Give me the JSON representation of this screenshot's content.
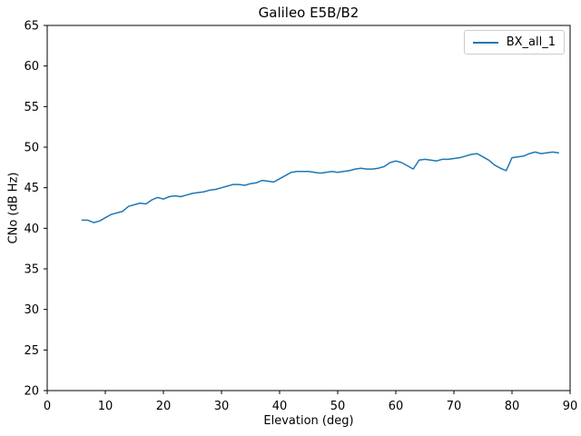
{
  "chart_data": {
    "type": "line",
    "title": "Galileo E5B/B2",
    "xlabel": "Elevation (deg)",
    "ylabel": "CNo (dB Hz)",
    "xlim": [
      0,
      90
    ],
    "ylim": [
      20,
      65
    ],
    "xticks": [
      0,
      10,
      20,
      30,
      40,
      50,
      60,
      70,
      80,
      90
    ],
    "yticks": [
      20,
      25,
      30,
      35,
      40,
      45,
      50,
      55,
      60,
      65
    ],
    "grid": false,
    "legend_position": "upper right",
    "frame_color": "#000000",
    "series": [
      {
        "name": "BX_all_1",
        "color": "#1f77b4",
        "x": [
          6,
          7,
          8,
          9,
          10,
          11,
          12,
          13,
          14,
          15,
          16,
          17,
          18,
          19,
          20,
          21,
          22,
          23,
          24,
          25,
          26,
          27,
          28,
          29,
          30,
          31,
          32,
          33,
          34,
          35,
          36,
          37,
          38,
          39,
          40,
          41,
          42,
          43,
          44,
          45,
          46,
          47,
          48,
          49,
          50,
          51,
          52,
          53,
          54,
          55,
          56,
          57,
          58,
          59,
          60,
          61,
          62,
          63,
          64,
          65,
          66,
          67,
          68,
          69,
          70,
          71,
          72,
          73,
          74,
          75,
          76,
          77,
          78,
          79,
          80,
          81,
          82,
          83,
          84,
          85,
          86,
          87,
          88
        ],
        "y": [
          41.0,
          41.0,
          40.7,
          40.9,
          41.3,
          41.7,
          41.9,
          42.1,
          42.7,
          42.9,
          43.1,
          43.0,
          43.5,
          43.8,
          43.6,
          43.9,
          44.0,
          43.9,
          44.1,
          44.3,
          44.4,
          44.5,
          44.7,
          44.8,
          45.0,
          45.2,
          45.4,
          45.4,
          45.3,
          45.5,
          45.6,
          45.9,
          45.8,
          45.7,
          46.1,
          46.5,
          46.9,
          47.0,
          47.0,
          47.0,
          46.9,
          46.8,
          46.9,
          47.0,
          46.9,
          47.0,
          47.1,
          47.3,
          47.4,
          47.3,
          47.3,
          47.4,
          47.6,
          48.1,
          48.3,
          48.1,
          47.7,
          47.3,
          48.4,
          48.5,
          48.4,
          48.3,
          48.5,
          48.5,
          48.6,
          48.7,
          48.9,
          49.1,
          49.2,
          48.8,
          48.4,
          47.8,
          47.4,
          47.1,
          48.7,
          48.8,
          48.9,
          49.2,
          49.4,
          49.2,
          49.3,
          49.4,
          49.3
        ]
      }
    ]
  }
}
